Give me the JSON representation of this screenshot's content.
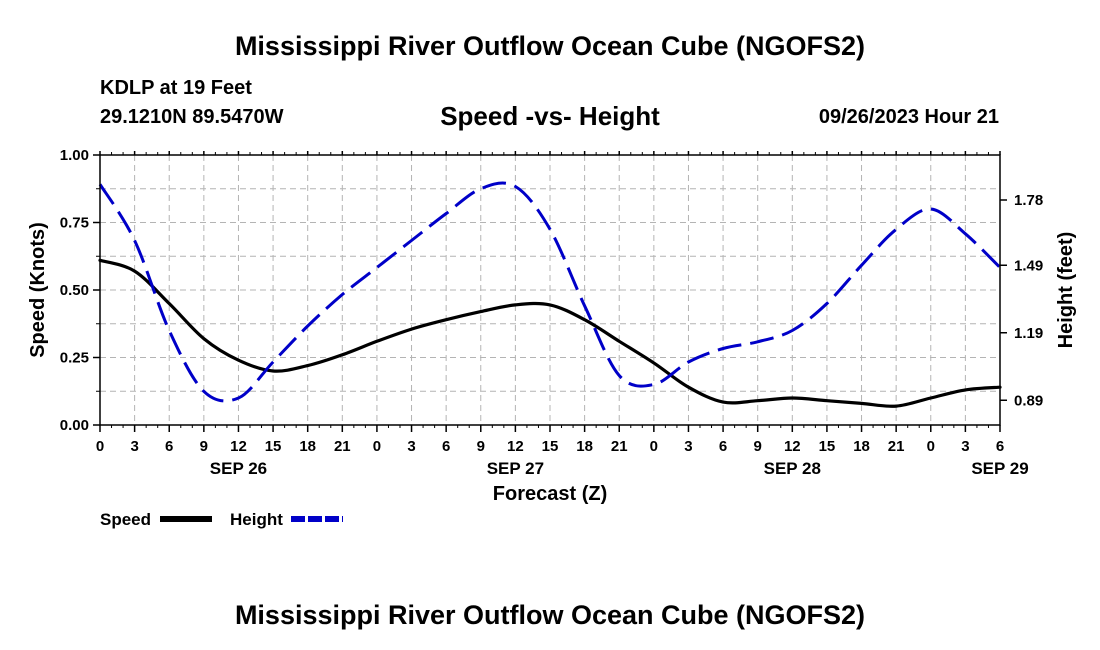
{
  "header": {
    "title": "Mississippi River Outflow Ocean Cube (NGOFS2)",
    "footer_title": "Mississippi River Outflow Ocean Cube (NGOFS2)",
    "station": "KDLP at 19 Feet",
    "location": "29.1210N  89.5470W",
    "subtitle": "Speed -vs- Height",
    "datetime": "09/26/2023 Hour 21"
  },
  "chart_data": {
    "type": "line",
    "title": "Speed -vs- Height",
    "xlabel": "Forecast (Z)",
    "ylabel": "Speed (Knots)",
    "y2label": "Height (feet)",
    "xlim": [
      0,
      78
    ],
    "ylim": [
      0,
      1.0
    ],
    "y2lim": [
      0.78,
      1.98
    ],
    "x_tick_labels": [
      "0",
      "3",
      "6",
      "9",
      "12",
      "15",
      "18",
      "21",
      "0",
      "3",
      "6",
      "9",
      "12",
      "15",
      "18",
      "21",
      "0",
      "3",
      "6",
      "9",
      "12",
      "15",
      "18",
      "21",
      "0",
      "3",
      "6"
    ],
    "y_ticks": [
      0,
      0.25,
      0.5,
      0.75,
      1.0
    ],
    "y_tick_labels": [
      "0.00",
      "0.25",
      "0.50",
      "0.75",
      "1.00"
    ],
    "y2_ticks": [
      0.89,
      1.19,
      1.49,
      1.78
    ],
    "y2_tick_labels": [
      "0.89",
      "1.19",
      "1.49",
      "1.78"
    ],
    "date_labels": [
      {
        "hour": 12,
        "label": "SEP 26"
      },
      {
        "hour": 36,
        "label": "SEP 27"
      },
      {
        "hour": 60,
        "label": "SEP 28"
      },
      {
        "hour": 78,
        "label": "SEP 29"
      }
    ],
    "series": [
      {
        "name": "Speed",
        "axis": "left",
        "color": "#000000",
        "style": "solid",
        "x": [
          0,
          3,
          6,
          9,
          12,
          15,
          18,
          21,
          24,
          27,
          30,
          33,
          36,
          39,
          42,
          45,
          48,
          51,
          54,
          57,
          60,
          63,
          66,
          69,
          72,
          75,
          78
        ],
        "values": [
          0.61,
          0.57,
          0.45,
          0.32,
          0.24,
          0.2,
          0.22,
          0.26,
          0.31,
          0.355,
          0.39,
          0.42,
          0.445,
          0.445,
          0.39,
          0.31,
          0.23,
          0.14,
          0.085,
          0.09,
          0.1,
          0.09,
          0.08,
          0.07,
          0.1,
          0.13,
          0.14
        ]
      },
      {
        "name": "Height",
        "axis": "right",
        "color": "#0000c8",
        "style": "dashed",
        "x": [
          0,
          3,
          6,
          9,
          12,
          15,
          18,
          21,
          24,
          27,
          30,
          33,
          36,
          39,
          42,
          45,
          48,
          51,
          54,
          57,
          60,
          63,
          66,
          69,
          72,
          75,
          78
        ],
        "values": [
          1.85,
          1.6,
          1.2,
          0.93,
          0.9,
          1.06,
          1.22,
          1.36,
          1.48,
          1.6,
          1.72,
          1.83,
          1.84,
          1.65,
          1.31,
          1.0,
          0.96,
          1.06,
          1.12,
          1.15,
          1.2,
          1.32,
          1.49,
          1.65,
          1.74,
          1.63,
          1.48
        ]
      }
    ],
    "legend": [
      {
        "label": "Speed",
        "color": "#000000",
        "style": "solid"
      },
      {
        "label": "Height",
        "color": "#0000c8",
        "style": "dashed"
      }
    ],
    "grid": true,
    "legend_position": "bottom-left"
  }
}
